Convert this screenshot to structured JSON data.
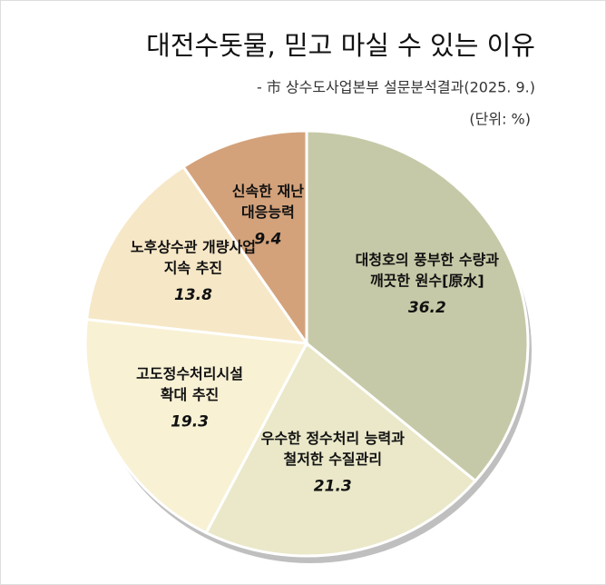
{
  "chart_data": {
    "type": "pie",
    "title": "대전수돗물, 믿고 마실 수 있는 이유",
    "subtitle": "- 市 상수도사업본부 설문분석결과(2025. 9.)",
    "unit": "(단위: %)",
    "categories": [
      [
        "대청호의 풍부한 수량과",
        "깨끗한 원수[原水]"
      ],
      [
        "우수한 정수처리 능력과",
        "철저한 수질관리"
      ],
      [
        "고도정수처리시설",
        "확대 추진"
      ],
      [
        "노후상수관 개량사업",
        "지속 추진"
      ],
      [
        "신속한 재난",
        "대응능력"
      ]
    ],
    "values": [
      36.2,
      21.3,
      19.3,
      13.8,
      9.4
    ],
    "colors": [
      "#c6c9a7",
      "#eae8c9",
      "#f8f1d4",
      "#f6e7c6",
      "#d3a27b"
    ]
  }
}
